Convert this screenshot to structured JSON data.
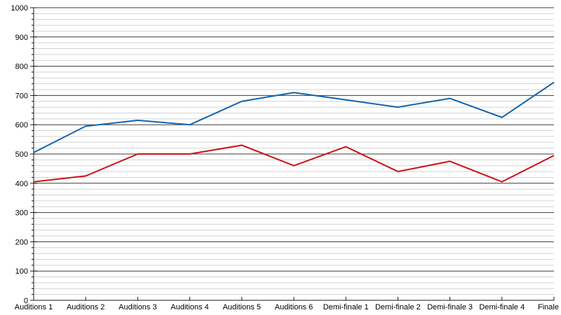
{
  "chart_data": {
    "type": "line",
    "title": "",
    "xlabel": "",
    "ylabel": "",
    "ylim": [
      0,
      1000
    ],
    "y_major_step": 100,
    "y_minor_step": 20,
    "grid": "horizontal-only",
    "legend": "none",
    "y_ticks": [
      "0",
      "100",
      "200",
      "300",
      "400",
      "500",
      "600",
      "700",
      "800",
      "900",
      "1000"
    ],
    "categories": [
      "Auditions 1",
      "Auditions 2",
      "Auditions 3",
      "Auditions 4",
      "Auditions 5",
      "Auditions 6",
      "Demi-finale 1",
      "Demi-finale 2",
      "Demi-finale 3",
      "Demi-finale 4",
      "Finale"
    ],
    "series": [
      {
        "name": "blue-series",
        "color": "#1164ad",
        "values": [
          505,
          595,
          615,
          600,
          680,
          710,
          685,
          660,
          690,
          625,
          745
        ]
      },
      {
        "name": "red-series",
        "color": "#cc1118",
        "values": [
          405,
          425,
          500,
          500,
          530,
          460,
          525,
          440,
          475,
          405,
          495
        ]
      }
    ],
    "colors": {
      "background": "#ffffff",
      "grid_major": "#3c3c3c",
      "grid_minor": "#d2d2d2",
      "axis": "#1a1a1a",
      "label_text": "#000000"
    }
  }
}
